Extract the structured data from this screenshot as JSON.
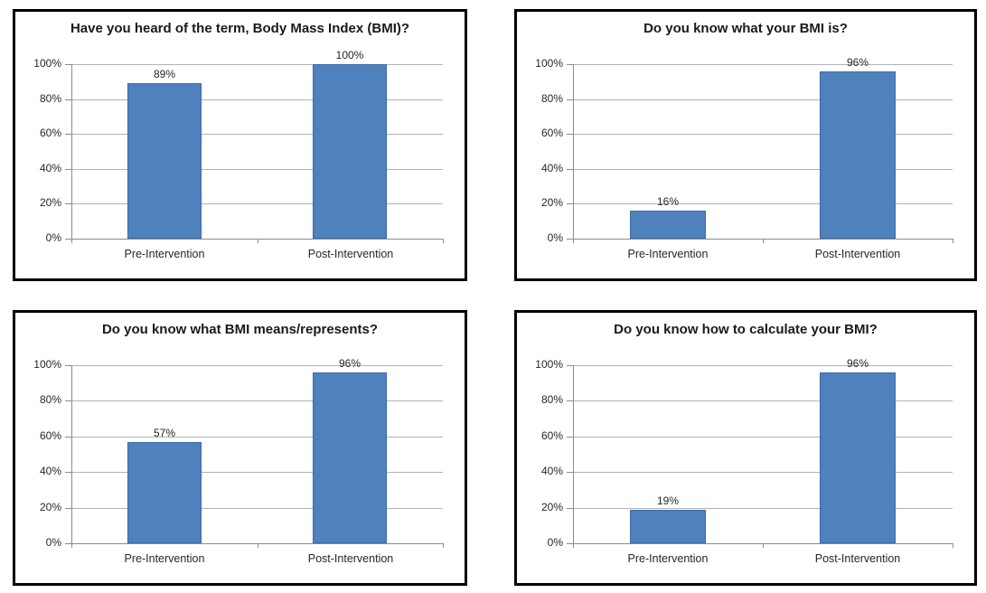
{
  "chart_data": [
    {
      "type": "bar",
      "title": "Have you heard of the term, Body Mass Index (BMI)?",
      "categories": [
        "Pre-Intervention",
        "Post-Intervention"
      ],
      "values": [
        89,
        100
      ],
      "value_labels": [
        "89%",
        "100%"
      ],
      "xlabel": "",
      "ylabel": "",
      "ylim": [
        0,
        100
      ],
      "yticks": [
        0,
        20,
        40,
        60,
        80,
        100
      ],
      "ytick_labels": [
        "0%",
        "20%",
        "40%",
        "60%",
        "80%",
        "100%"
      ],
      "grid": true,
      "legend": "none"
    },
    {
      "type": "bar",
      "title": "Do you know what your BMI is?",
      "categories": [
        "Pre-Intervention",
        "Post-Intervention"
      ],
      "values": [
        16,
        96
      ],
      "value_labels": [
        "16%",
        "96%"
      ],
      "xlabel": "",
      "ylabel": "",
      "ylim": [
        0,
        100
      ],
      "yticks": [
        0,
        20,
        40,
        60,
        80,
        100
      ],
      "ytick_labels": [
        "0%",
        "20%",
        "40%",
        "60%",
        "80%",
        "100%"
      ],
      "grid": true,
      "legend": "none"
    },
    {
      "type": "bar",
      "title": "Do you know what BMI means/represents?",
      "categories": [
        "Pre-Intervention",
        "Post-Intervention"
      ],
      "values": [
        57,
        96
      ],
      "value_labels": [
        "57%",
        "96%"
      ],
      "xlabel": "",
      "ylabel": "",
      "ylim": [
        0,
        100
      ],
      "yticks": [
        0,
        20,
        40,
        60,
        80,
        100
      ],
      "ytick_labels": [
        "0%",
        "20%",
        "40%",
        "60%",
        "80%",
        "100%"
      ],
      "grid": true,
      "legend": "none"
    },
    {
      "type": "bar",
      "title": "Do you know how to calculate your BMI?",
      "categories": [
        "Pre-Intervention",
        "Post-Intervention"
      ],
      "values": [
        19,
        96
      ],
      "value_labels": [
        "19%",
        "96%"
      ],
      "xlabel": "",
      "ylabel": "",
      "ylim": [
        0,
        100
      ],
      "yticks": [
        0,
        20,
        40,
        60,
        80,
        100
      ],
      "ytick_labels": [
        "0%",
        "20%",
        "40%",
        "60%",
        "80%",
        "100%"
      ],
      "grid": true,
      "legend": "none"
    }
  ],
  "style": {
    "bar_fill": "#4F81BD",
    "bar_border": "#3A6BA8",
    "gridline_color": "#B3B3B3",
    "axis_color": "#8C8C8C",
    "panel_border": "#000000",
    "background": "#FFFFFF",
    "bar_fraction_of_category": 0.4
  }
}
